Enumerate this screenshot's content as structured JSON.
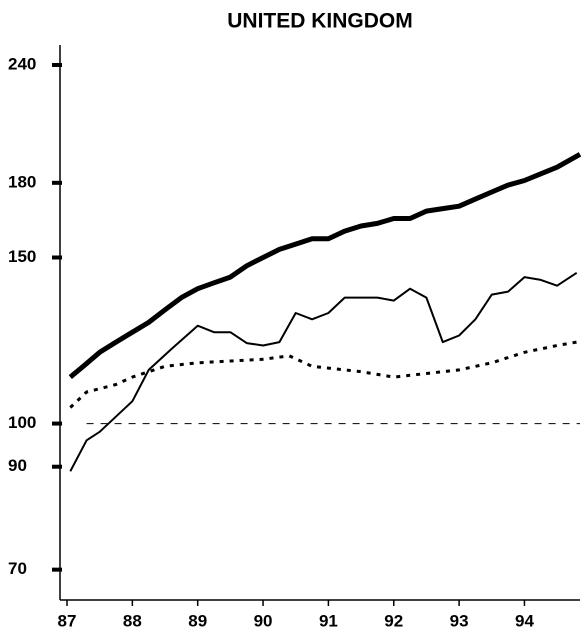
{
  "chart_data": {
    "type": "line",
    "title": "UNITED KINGDOM",
    "log_scale_y": true,
    "xlim": [
      87,
      94.85
    ],
    "xticks": [
      87,
      88,
      89,
      90,
      91,
      92,
      93,
      94
    ],
    "ylim": [
      65,
      252
    ],
    "yticks": [
      70,
      90,
      100,
      150,
      180,
      240
    ],
    "series": [
      {
        "color": "#000000",
        "linestyle": "solid",
        "linewidth": 5,
        "x": [
          87.05,
          87.25,
          87.5,
          87.75,
          88,
          88.25,
          88.5,
          88.75,
          89,
          89.25,
          89.5,
          89.75,
          90,
          90.25,
          90.5,
          90.75,
          91,
          91.25,
          91.5,
          91.75,
          92,
          92.25,
          92.5,
          92.75,
          93,
          93.25,
          93.5,
          93.75,
          94,
          94.25,
          94.5,
          94.85
        ],
        "values": [
          112,
          115,
          119,
          122,
          125,
          128,
          132,
          136,
          139,
          141,
          143,
          147,
          150,
          153,
          155,
          157,
          157,
          160,
          162,
          163,
          165,
          165,
          168,
          169,
          170,
          173,
          176,
          179,
          181,
          184,
          187,
          193
        ]
      },
      {
        "color": "#000000",
        "linestyle": "solid",
        "linewidth": 2,
        "x": [
          87.05,
          87.3,
          87.5,
          88,
          88.25,
          88.6,
          89,
          89.25,
          89.5,
          89.75,
          90,
          90.25,
          90.5,
          90.75,
          91,
          91.25,
          91.5,
          91.75,
          92,
          92.25,
          92.5,
          92.75,
          93,
          93.25,
          93.5,
          93.75,
          94,
          94.25,
          94.5,
          94.8
        ],
        "values": [
          89,
          96,
          98,
          105.6,
          114,
          120,
          127,
          125,
          125,
          121.7,
          121,
          122,
          131,
          129,
          131,
          136,
          136,
          136,
          135,
          139,
          136,
          122,
          124,
          129,
          137,
          138,
          143,
          142,
          140,
          144.5
        ]
      },
      {
        "color": "#000000",
        "linestyle": "dotted",
        "linewidth": 3,
        "x": [
          87.05,
          87.3,
          87.75,
          88,
          88.5,
          89,
          89.5,
          90,
          90.4,
          90.75,
          91,
          91.5,
          92,
          92.5,
          93,
          93.5,
          94,
          94.5,
          94.8
        ],
        "values": [
          104,
          108,
          110,
          112,
          115,
          116,
          116.5,
          117,
          118,
          115,
          114.5,
          113.5,
          112,
          113,
          114,
          116,
          119,
          121,
          122
        ]
      },
      {
        "color": "#000000",
        "linestyle": "dashed",
        "linewidth": 1,
        "x": [
          87.3,
          94.85
        ],
        "values": [
          100,
          100
        ]
      }
    ]
  }
}
